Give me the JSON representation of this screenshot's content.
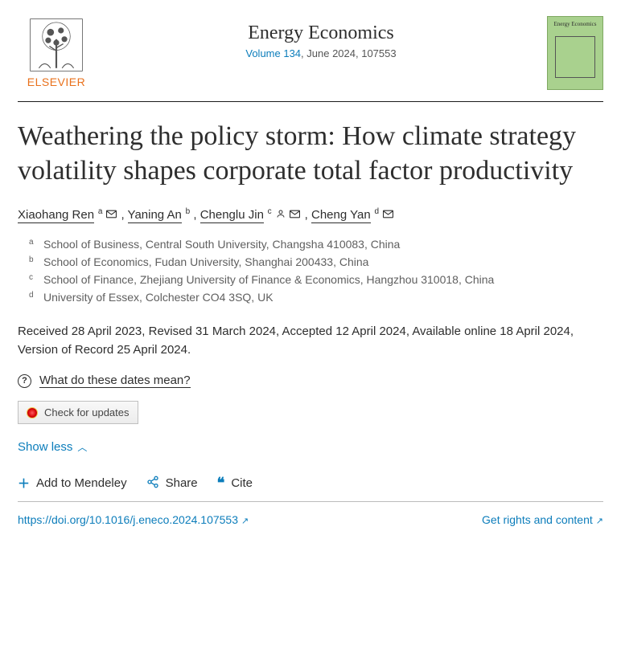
{
  "publisher": {
    "name": "ELSEVIER",
    "brand_color": "#e9711c"
  },
  "journal": {
    "name": "Energy Economics",
    "volume_link_text": "Volume 134",
    "issue_detail": ", June 2024, 107553",
    "cover_title": "Energy Economics",
    "link_color": "#0c7dbb"
  },
  "article": {
    "title": "Weathering the policy storm: How climate strategy volatility shapes corporate total factor productivity"
  },
  "authors": [
    {
      "name": "Xiaohang Ren",
      "sup": "a",
      "mail": true,
      "person": false
    },
    {
      "name": "Yaning An",
      "sup": "b",
      "mail": false,
      "person": false
    },
    {
      "name": "Chenglu Jin",
      "sup": "c",
      "mail": true,
      "person": true
    },
    {
      "name": "Cheng Yan",
      "sup": "d",
      "mail": true,
      "person": false
    }
  ],
  "affiliations": [
    {
      "sup": "a",
      "text": "School of Business, Central South University, Changsha 410083, China"
    },
    {
      "sup": "b",
      "text": "School of Economics, Fudan University, Shanghai 200433, China"
    },
    {
      "sup": "c",
      "text": "School of Finance, Zhejiang University of Finance & Economics, Hangzhou 310018, China"
    },
    {
      "sup": "d",
      "text": "University of Essex, Colchester CO4 3SQ, UK"
    }
  ],
  "history": {
    "text": "Received 28 April 2023, Revised 31 March 2024, Accepted 12 April 2024, Available online 18 April 2024, Version of Record 25 April 2024."
  },
  "dates_help_label": "What do these dates mean?",
  "updates_button_label": "Check for updates",
  "show_less_label": "Show less",
  "actions": {
    "mendeley": "Add to Mendeley",
    "share": "Share",
    "cite": "Cite"
  },
  "footer": {
    "doi": "https://doi.org/10.1016/j.eneco.2024.107553",
    "rights": "Get rights and content"
  },
  "colors": {
    "text": "#2e2e2e",
    "subtle": "#5f5f5f",
    "link": "#0c7dbb",
    "rule": "#1a1a1a",
    "border_light": "#bcbcbc"
  }
}
